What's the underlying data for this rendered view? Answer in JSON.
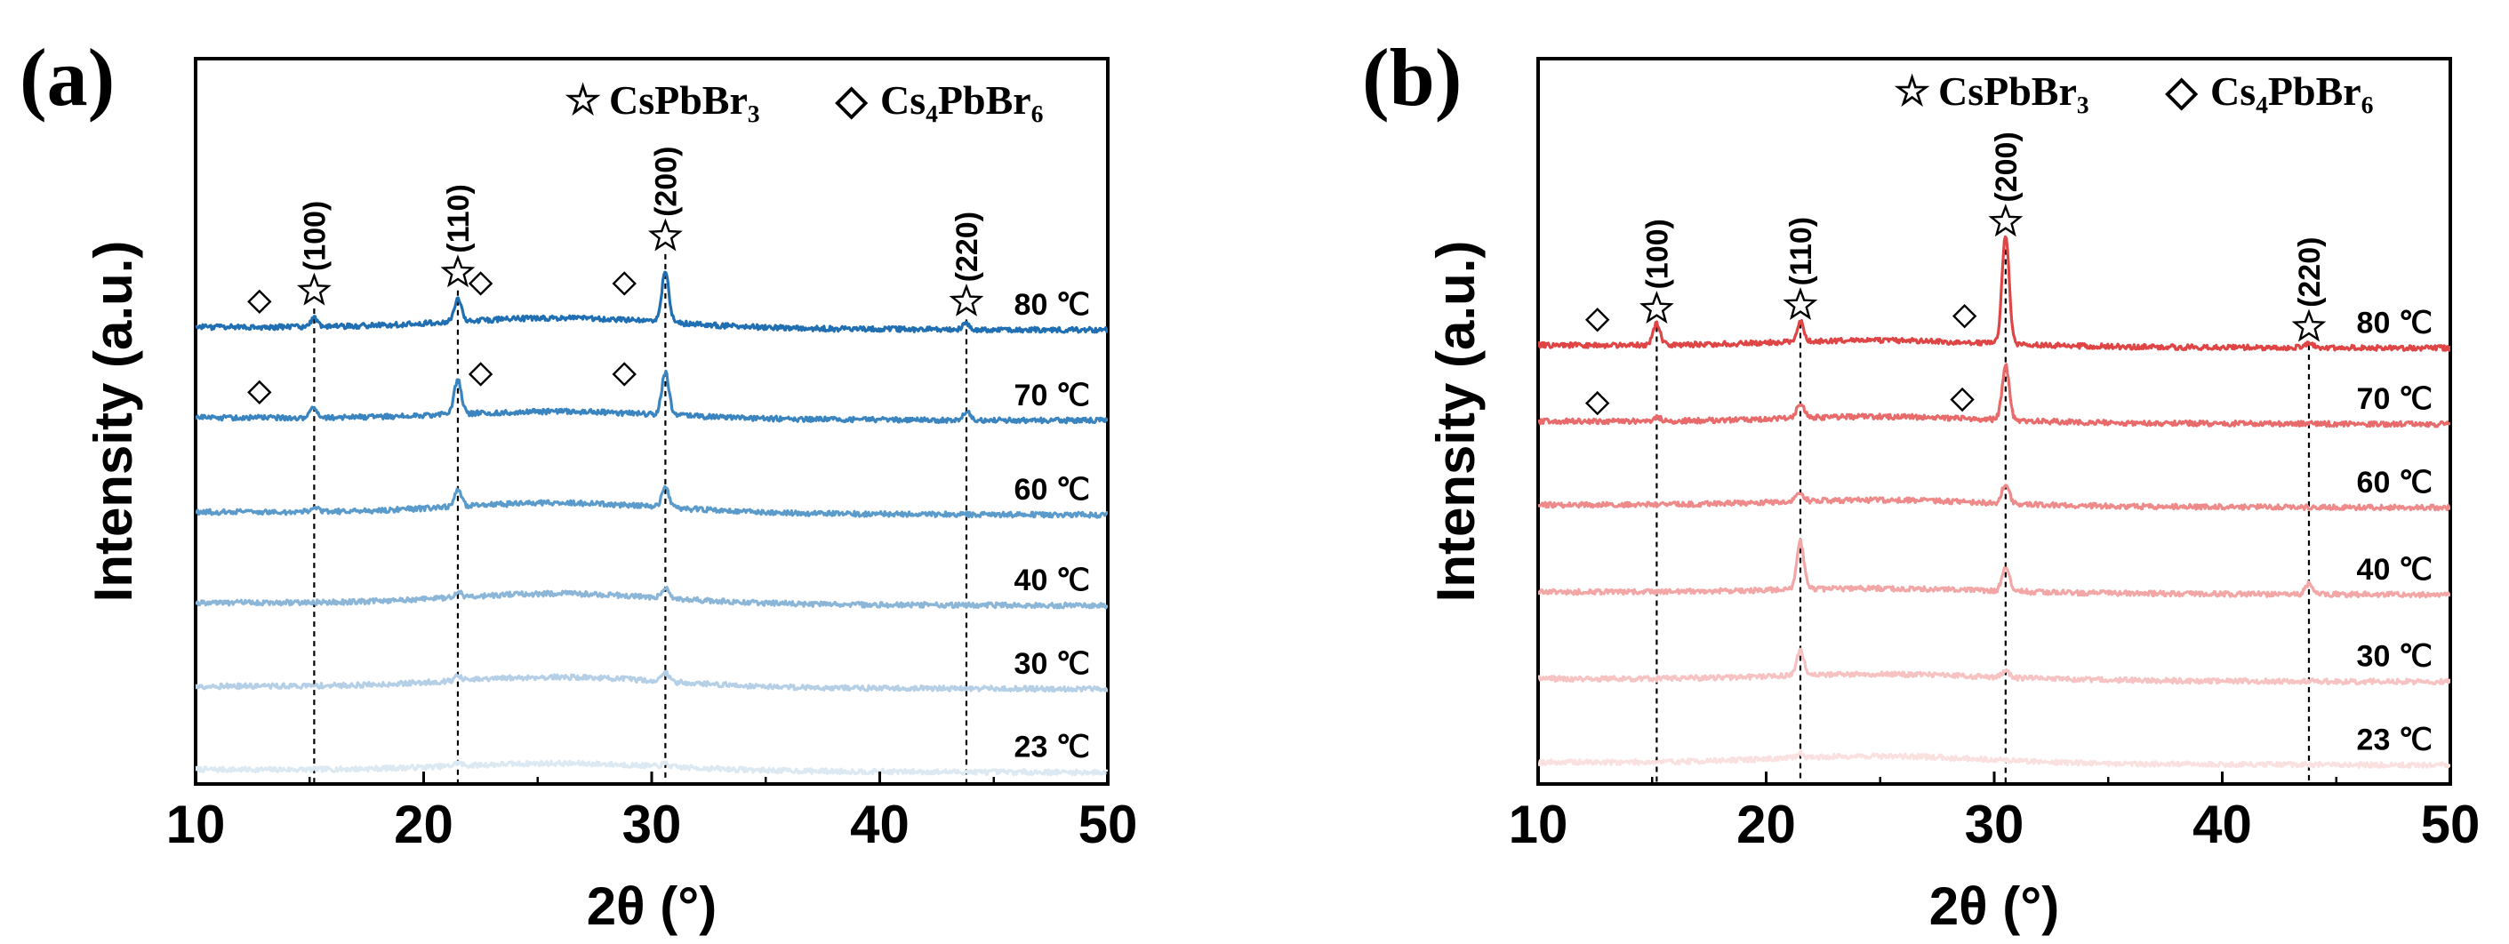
{
  "chart_data": [
    {
      "type": "line",
      "panel_label": "(a)",
      "xlabel": "2θ (°)",
      "ylabel": "Intensity (a.u.)",
      "xlim": [
        10,
        50
      ],
      "xticks": [
        "10",
        "20",
        "30",
        "40",
        "50"
      ],
      "legend": [
        {
          "symbol": "☆",
          "text": "CsPbBr₃"
        },
        {
          "symbol": "◇",
          "text": "Cs₄PbBr₆"
        }
      ],
      "reference_lines": [
        15.2,
        21.5,
        30.6,
        43.8
      ],
      "hkl_labels": [
        {
          "x": 15.2,
          "text": "(100)"
        },
        {
          "x": 21.5,
          "text": "(110)"
        },
        {
          "x": 30.6,
          "text": "(200)"
        },
        {
          "x": 43.8,
          "text": "(220)"
        }
      ],
      "series": [
        {
          "name": "23 ℃",
          "color": "#dce9f3",
          "baseline": 0.02,
          "peaks": [
            [
              21.5,
              0.004
            ],
            [
              30.6,
              0.004
            ]
          ],
          "hump": [
            26,
            0.01
          ]
        },
        {
          "name": "30 ℃",
          "color": "#b5d0e6",
          "baseline": 0.135,
          "peaks": [
            [
              21.5,
              0.006
            ],
            [
              30.6,
              0.012
            ]
          ],
          "hump": [
            26,
            0.014
          ]
        },
        {
          "name": "40 ℃",
          "color": "#8bb6d8",
          "baseline": 0.25,
          "peaks": [
            [
              21.5,
              0.008
            ],
            [
              30.6,
              0.015
            ]
          ],
          "hump": [
            26,
            0.014
          ]
        },
        {
          "name": "60 ℃",
          "color": "#5a9bcc",
          "baseline": 0.375,
          "peaks": [
            [
              15.2,
              0.006
            ],
            [
              21.5,
              0.022
            ],
            [
              30.6,
              0.028
            ]
          ],
          "hump": [
            26,
            0.014
          ]
        },
        {
          "name": "70 ℃",
          "color": "#3a84c0",
          "baseline": 0.505,
          "peaks": [
            [
              15.2,
              0.014
            ],
            [
              21.5,
              0.048
            ],
            [
              30.6,
              0.058
            ],
            [
              43.8,
              0.012
            ]
          ],
          "hump": [
            26,
            0.01
          ]
        },
        {
          "name": "80 ℃",
          "color": "#1f6fb2",
          "baseline": 0.63,
          "peaks": [
            [
              15.2,
              0.012
            ],
            [
              21.5,
              0.03
            ],
            [
              30.6,
              0.07
            ],
            [
              43.8,
              0.008
            ]
          ],
          "hump": [
            26,
            0.014
          ]
        }
      ],
      "star_markers": [
        [
          15.2,
          0.68
        ],
        [
          21.5,
          0.705
        ],
        [
          30.6,
          0.755
        ],
        [
          43.8,
          0.665
        ]
      ],
      "diamond_markers": [
        [
          12.8,
          0.665
        ],
        [
          22.5,
          0.69
        ],
        [
          28.8,
          0.69
        ],
        [
          12.8,
          0.54
        ],
        [
          22.5,
          0.565
        ],
        [
          28.8,
          0.565
        ]
      ]
    },
    {
      "type": "line",
      "panel_label": "(b)",
      "xlabel": "2θ (°)",
      "ylabel": "Intensity (a.u.)",
      "xlim": [
        10,
        50
      ],
      "xticks": [
        "10",
        "20",
        "30",
        "40",
        "50"
      ],
      "legend": [
        {
          "symbol": "☆",
          "text": "CsPbBr₃"
        },
        {
          "symbol": "◇",
          "text": "Cs₄PbBr₆"
        }
      ],
      "reference_lines": [
        15.2,
        21.5,
        30.5,
        43.8
      ],
      "hkl_labels": [
        {
          "x": 15.2,
          "text": "(100)"
        },
        {
          "x": 21.5,
          "text": "(110)"
        },
        {
          "x": 30.5,
          "text": "(200)"
        },
        {
          "x": 43.8,
          "text": "(220)"
        }
      ],
      "series": [
        {
          "name": "23 ℃",
          "color": "#fbe0e0",
          "baseline": 0.03,
          "peaks": [
            [
              21.5,
              0.006
            ]
          ],
          "hump": [
            25,
            0.01
          ]
        },
        {
          "name": "30 ℃",
          "color": "#f6c2c2",
          "baseline": 0.145,
          "peaks": [
            [
              21.5,
              0.035
            ],
            [
              30.5,
              0.008
            ]
          ],
          "hump": [
            25,
            0.008
          ]
        },
        {
          "name": "40 ℃",
          "color": "#f2a6a6",
          "baseline": 0.265,
          "peaks": [
            [
              21.5,
              0.065
            ],
            [
              30.5,
              0.035
            ],
            [
              43.8,
              0.015
            ]
          ],
          "hump": [
            25,
            0.006
          ]
        },
        {
          "name": "60 ℃",
          "color": "#ee8a8a",
          "baseline": 0.385,
          "peaks": [
            [
              21.5,
              0.012
            ],
            [
              30.5,
              0.028
            ]
          ],
          "hump": [
            25,
            0.008
          ]
        },
        {
          "name": "70 ℃",
          "color": "#e86a6a",
          "baseline": 0.5,
          "peaks": [
            [
              15.2,
              0.006
            ],
            [
              21.5,
              0.02
            ],
            [
              30.5,
              0.075
            ]
          ],
          "hump": [
            25,
            0.008
          ]
        },
        {
          "name": "80 ℃",
          "color": "#e04545",
          "baseline": 0.605,
          "peaks": [
            [
              15.2,
              0.03
            ],
            [
              21.5,
              0.028
            ],
            [
              30.5,
              0.15
            ],
            [
              43.8,
              0.006
            ]
          ],
          "hump": [
            25,
            0.008
          ]
        }
      ],
      "star_markers": [
        [
          15.2,
          0.655
        ],
        [
          21.5,
          0.66
        ],
        [
          30.5,
          0.775
        ],
        [
          43.8,
          0.63
        ]
      ],
      "diamond_markers": [
        [
          12.6,
          0.64
        ],
        [
          28.7,
          0.645
        ],
        [
          12.6,
          0.525
        ],
        [
          28.6,
          0.53
        ]
      ]
    }
  ]
}
